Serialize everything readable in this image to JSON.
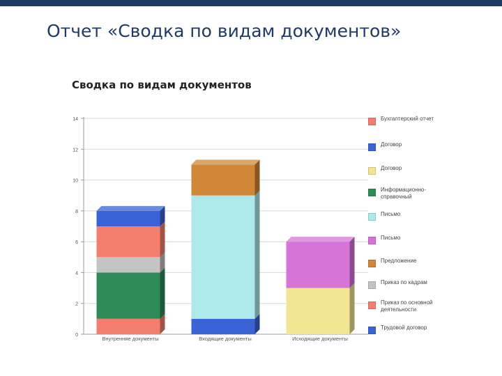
{
  "slide": {
    "title": "Отчет «Сводка по видам документов»"
  },
  "chart_data": {
    "type": "bar",
    "stacked": true,
    "title": "Сводка по видам документов",
    "categories": [
      "Внутренние документы",
      "Входящие документы",
      "Исходящие документы"
    ],
    "ylim": [
      0,
      14
    ],
    "yticks": [
      0,
      2,
      4,
      6,
      8,
      10,
      12,
      14
    ],
    "grid": true,
    "legend_position": "right",
    "series": [
      {
        "name": "Бухгалтерский отчет",
        "color": "#f47e6e",
        "values": [
          1,
          0,
          0
        ]
      },
      {
        "name": "Договор",
        "color": "#3a63d6",
        "values": [
          0,
          1,
          0
        ]
      },
      {
        "name": "Договор",
        "color": "#f2e694",
        "values": [
          0,
          0,
          3
        ]
      },
      {
        "name": "Информационно-справочный",
        "color": "#2e8b57",
        "values": [
          3,
          0,
          0
        ]
      },
      {
        "name": "Письмо",
        "color": "#ade9ea",
        "values": [
          0,
          8,
          0
        ]
      },
      {
        "name": "Письмо",
        "color": "#d774d8",
        "values": [
          0,
          0,
          3
        ]
      },
      {
        "name": "Предложение",
        "color": "#d08838",
        "values": [
          0,
          2,
          0
        ]
      },
      {
        "name": "Приказ по кадрам",
        "color": "#c4c4c4",
        "values": [
          1,
          0,
          0
        ]
      },
      {
        "name": "Приказ по основной деятельности",
        "color": "#f47e6e",
        "values": [
          2,
          0,
          0
        ]
      },
      {
        "name": "Трудовой договор",
        "color": "#3a63d6",
        "values": [
          1,
          0,
          0
        ]
      }
    ]
  }
}
